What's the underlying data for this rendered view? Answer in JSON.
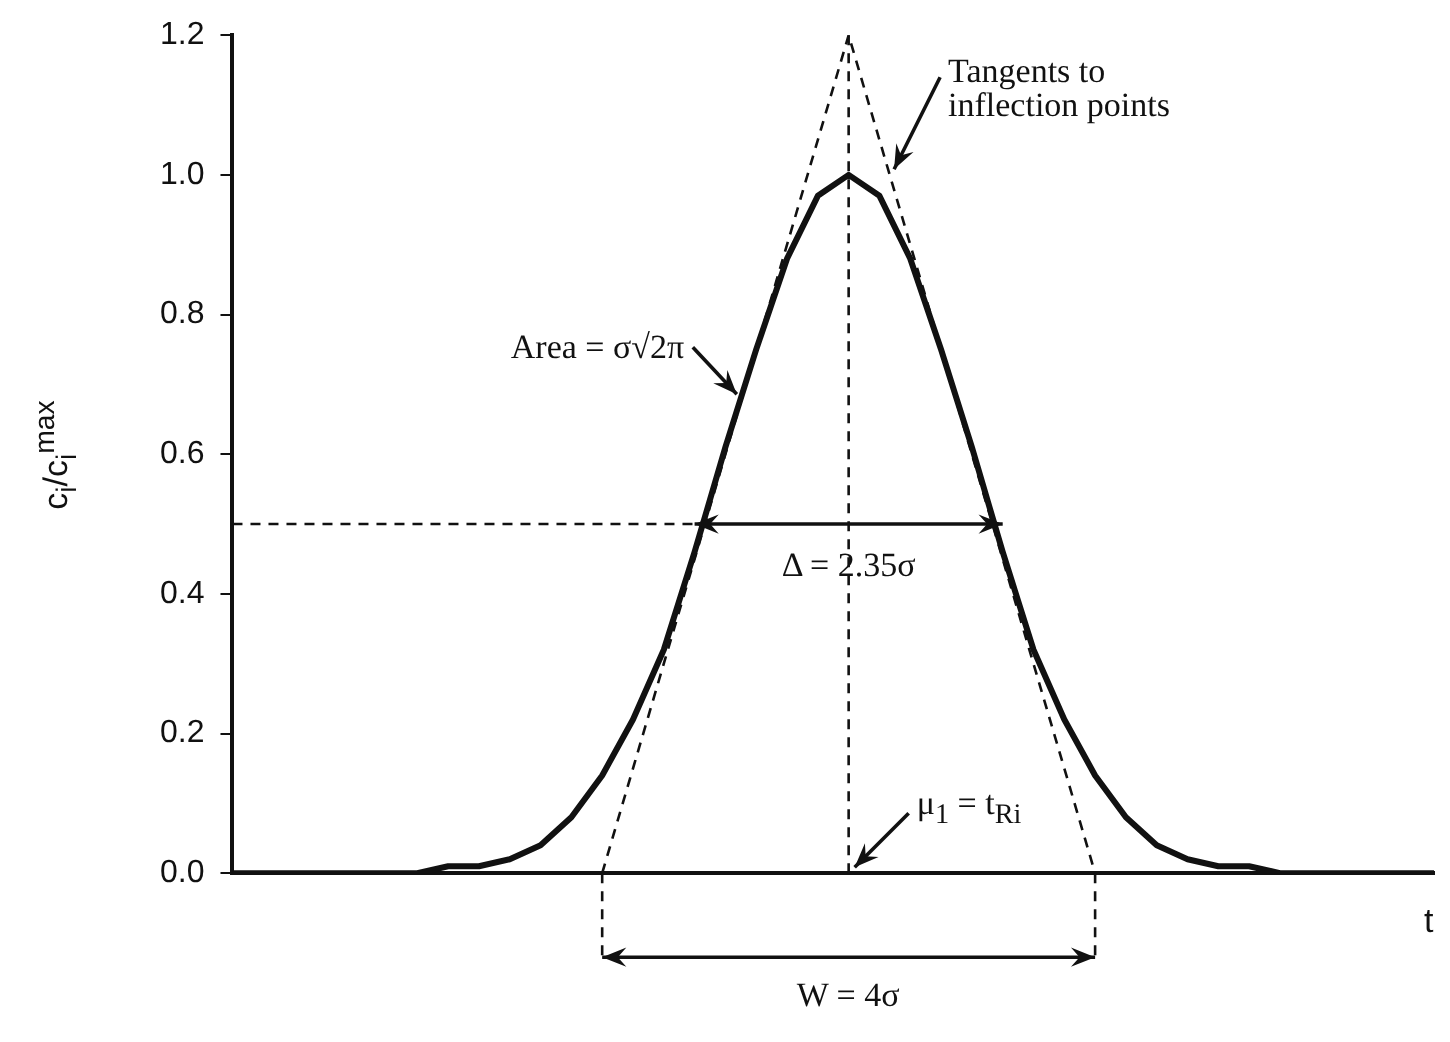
{
  "chart_data": {
    "type": "line",
    "xlabel": "t",
    "ylabel": "c$_{i}$/c$_{i}$$^{max}$",
    "categories": [
      null,
      null,
      null,
      null,
      null,
      null,
      null,
      null,
      null,
      null,
      null,
      null,
      null,
      null,
      null,
      null,
      null,
      null,
      null,
      null,
      null,
      null,
      null,
      null,
      null,
      null,
      null,
      null,
      null,
      null,
      null,
      null,
      null,
      null,
      null,
      null,
      null,
      null,
      null,
      null
    ],
    "ylim": [
      0,
      1.2
    ],
    "yticks": [
      {
        "value": 0,
        "label": "0.0"
      },
      0.2,
      0.4,
      0.6,
      0.8,
      {
        "value": 1,
        "label": "1.0"
      },
      1.2
    ],
    "grid": false,
    "legend": false,
    "marker": "none",
    "line_style": "solid",
    "series": [
      {
        "color": "#111111",
        "values": [
          0,
          0,
          0,
          0,
          0,
          0,
          0,
          0.01,
          0.01,
          0.02,
          0.04,
          0.08,
          0.14,
          0.22,
          0.32,
          0.46,
          0.61,
          0.75,
          0.88,
          0.97,
          1,
          0.97,
          0.88,
          0.75,
          0.61,
          0.46,
          0.32,
          0.22,
          0.14,
          0.08,
          0.04,
          0.02,
          0.01,
          0.01,
          0,
          0,
          0,
          0,
          0,
          0
        ]
      },
      {
        "color": "#111111",
        "line_style": "dashed",
        "values": [
          null,
          null,
          null,
          null,
          null,
          null,
          null,
          null,
          null,
          null,
          null,
          null,
          0,
          null,
          null,
          null,
          null,
          null,
          null,
          null,
          1.2,
          null,
          null,
          null,
          null,
          null,
          null,
          null,
          0,
          null,
          null,
          null,
          null,
          null,
          null,
          null,
          null,
          null,
          null,
          null
        ]
      },
      {
        "color": "#111111",
        "line_style": "dashed",
        "values": [
          0.5,
          0.5,
          0.5,
          0.5,
          0.5,
          0.5,
          0.5,
          0.5,
          0.5,
          0.5,
          0.5,
          0.5,
          0.5,
          0.5,
          0.5,
          0.5,
          null,
          null,
          null,
          null,
          null,
          null,
          null,
          null,
          null,
          null,
          null,
          null,
          null,
          null,
          null,
          null,
          null,
          null,
          null,
          null,
          null,
          null,
          null,
          null
        ]
      }
    ],
    "annotations": [
      "Tangents to inflection points",
      "Area = σ√2π",
      "Δ = 2.35σ",
      "μ$_{1}$ = t$_{Ri}$",
      "W = 4σ"
    ]
  }
}
